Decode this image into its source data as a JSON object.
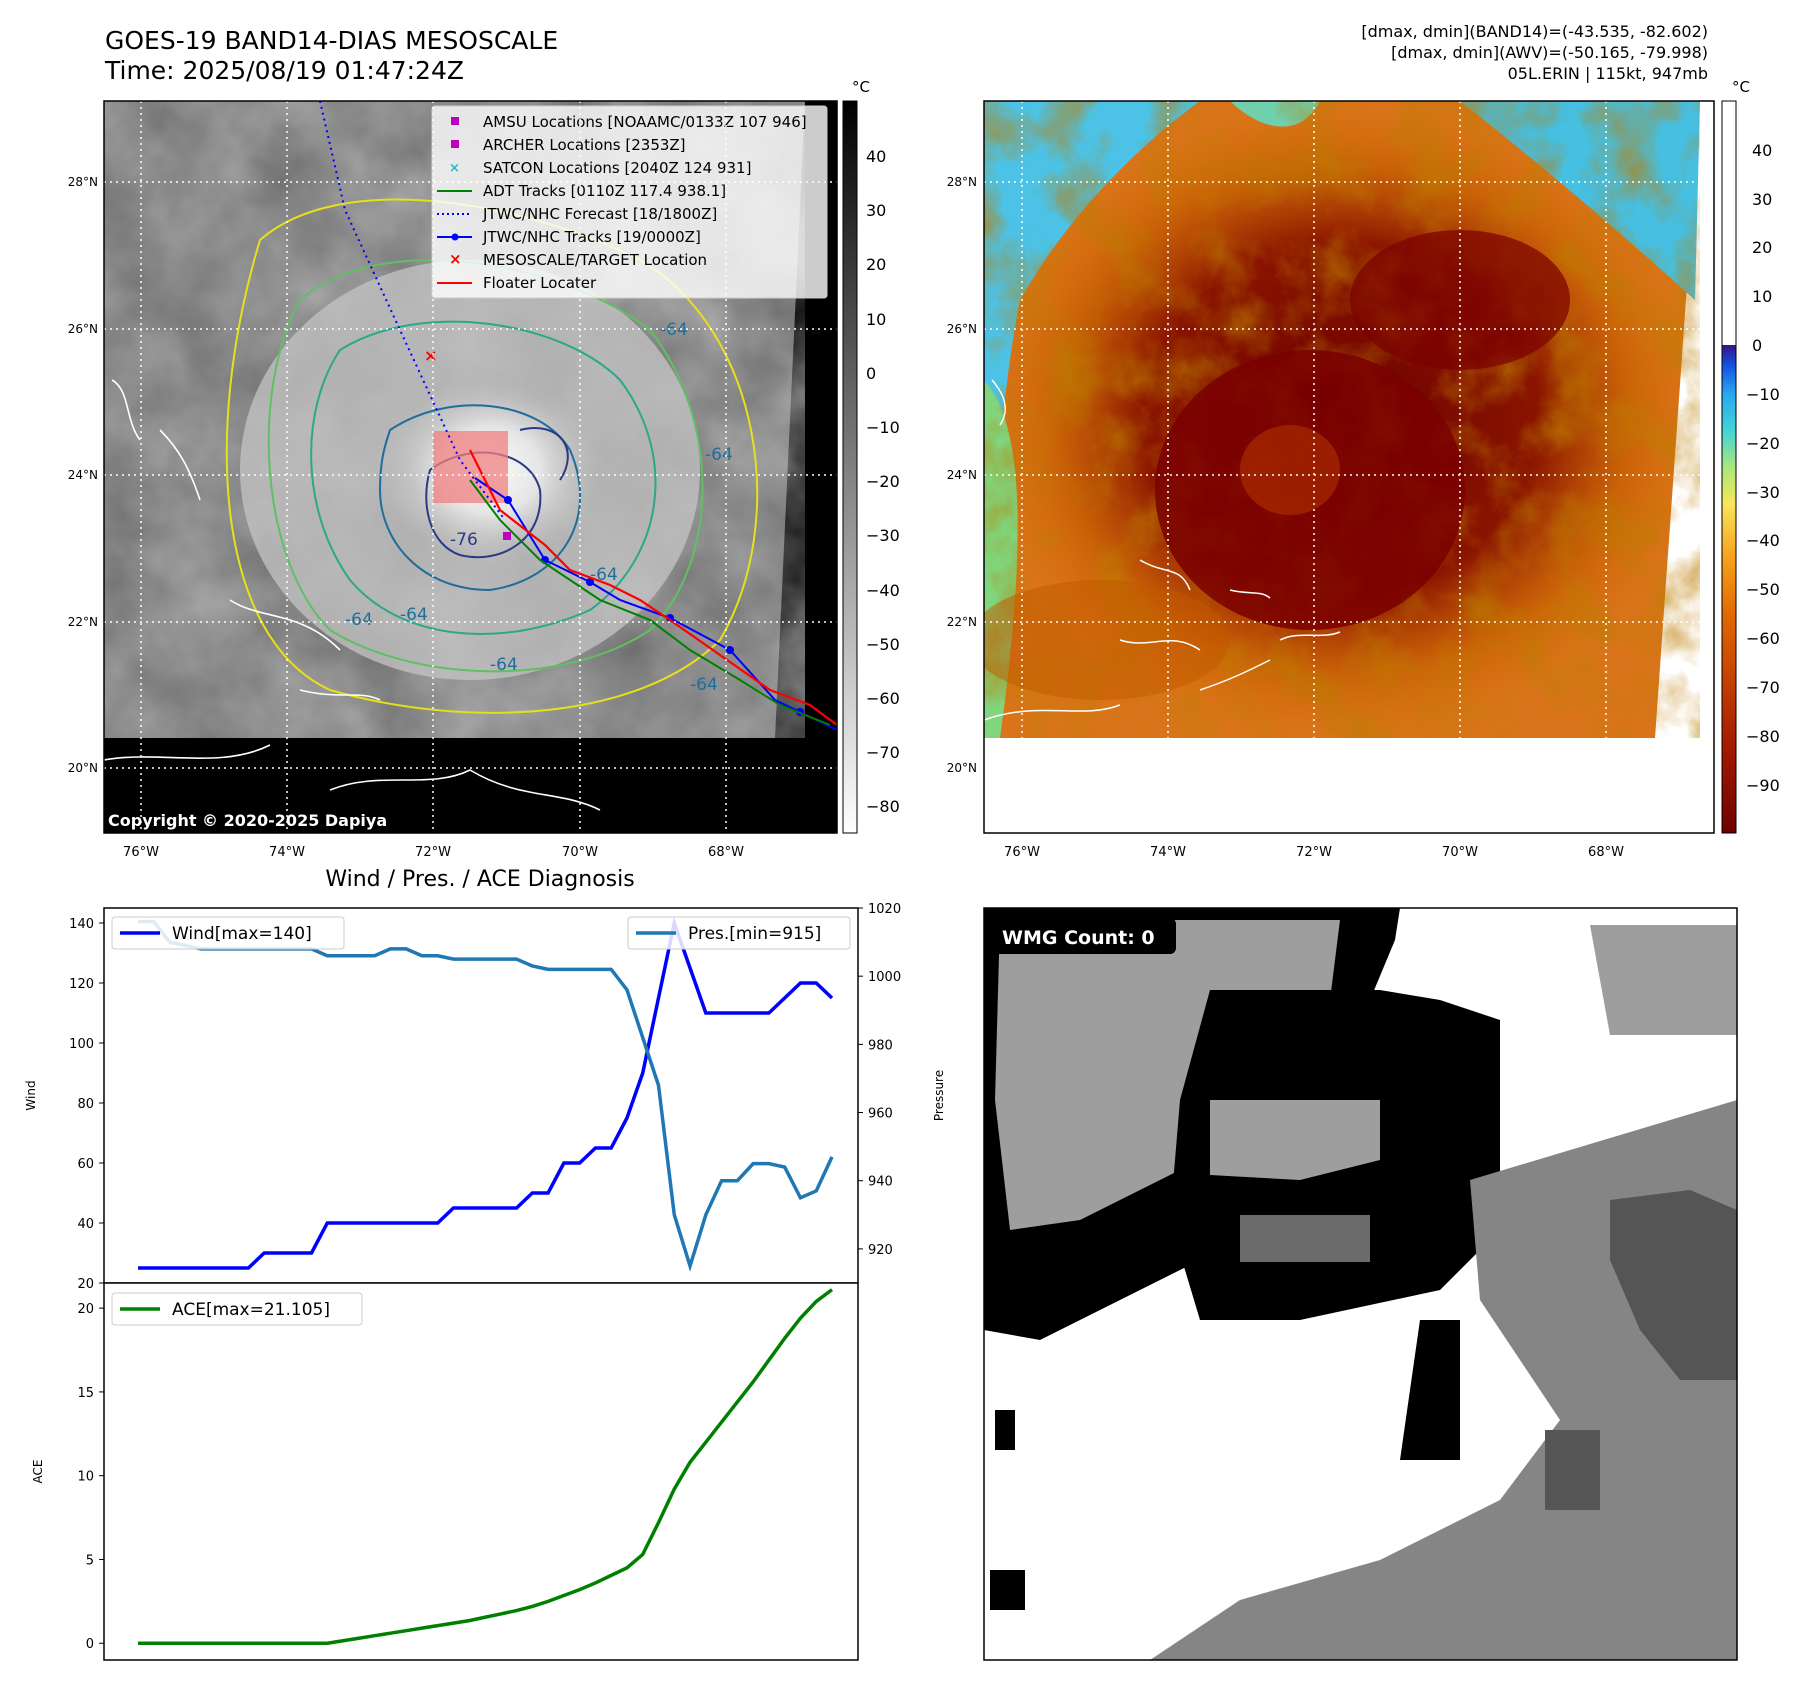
{
  "header": {
    "title": "GOES-19 BAND14-DIAS MESOSCALE",
    "time": "Time: 2025/08/19 01:47:24Z",
    "dmax_band14": "[dmax, dmin](BAND14)=(-43.535, -82.602)",
    "dmax_awv": "[dmax, dmin](AWV)=(-50.165, -79.998)",
    "storm": "05L.ERIN | 115kt, 947mb"
  },
  "copyright": "Copyright © 2020-2025 Dapiya",
  "colorbar_unit": "°C",
  "map_ticks": {
    "lat": [
      "28°N",
      "26°N",
      "24°N",
      "22°N",
      "20°N"
    ],
    "lon": [
      "76°W",
      "74°W",
      "72°W",
      "70°W",
      "68°W"
    ]
  },
  "colors": {
    "jtwc_track": "#0000ff",
    "adt_track": "#008000",
    "floater": "#ff0000",
    "amsu": "#bf00bf",
    "satcon": "#17becf",
    "pressure": "#1f77b4",
    "ace": "#008000"
  },
  "legend": [
    {
      "icon": "amsu-square-icon",
      "label": "AMSU Locations [NOAAMC/0133Z 107 946]"
    },
    {
      "icon": "archer-square-icon",
      "label": "ARCHER Locations [2353Z]"
    },
    {
      "icon": "satcon-x-icon",
      "label": "SATCON Locations [2040Z 124 931]"
    },
    {
      "icon": "adt-line-icon",
      "label": "ADT Tracks [0110Z 117.4 938.1]"
    },
    {
      "icon": "forecast-dotted-line-icon",
      "label": "JTWC/NHC Forecast [18/1800Z]"
    },
    {
      "icon": "tracks-line-marker-icon",
      "label": "JTWC/NHC Tracks [19/0000Z]"
    },
    {
      "icon": "target-x-icon",
      "label": "MESOSCALE/TARGET Location"
    },
    {
      "icon": "floater-line-icon",
      "label": "Floater Locater"
    }
  ],
  "contour_labels": [
    "-76",
    "-64",
    "-64",
    "-64",
    "-64",
    "-64",
    "-64",
    "-64"
  ],
  "colorbar_left_ticks": [
    "40",
    "30",
    "20",
    "10",
    "0",
    "−10",
    "−20",
    "−30",
    "−40",
    "−50",
    "−60",
    "−70",
    "−80"
  ],
  "colorbar_right_ticks": [
    "40",
    "30",
    "20",
    "10",
    "0",
    "−10",
    "−20",
    "−30",
    "−40",
    "−50",
    "−60",
    "−70",
    "−80",
    "−90"
  ],
  "diag_title": "Wind / Pres. / ACE Diagnosis",
  "wmg_label": "WMG Count: 0",
  "chart_data": [
    {
      "type": "line",
      "title": "Wind / Pres. / ACE Diagnosis",
      "ylabel": "Wind",
      "y2label": "Pressure",
      "ylim": [
        20,
        145
      ],
      "y2lim": [
        910,
        1020
      ],
      "yticks": [
        20,
        40,
        60,
        80,
        100,
        120,
        140
      ],
      "y2ticks": [
        920,
        940,
        960,
        980,
        1000,
        1020
      ],
      "x": [
        0,
        1,
        2,
        3,
        4,
        5,
        6,
        7,
        8,
        9,
        10,
        11,
        12,
        13,
        14,
        15,
        16,
        17,
        18,
        19,
        20,
        21,
        22,
        23,
        24,
        25,
        26,
        27,
        28,
        29,
        30,
        31,
        32,
        33,
        34,
        35,
        36,
        37,
        38,
        39,
        40,
        41,
        42,
        43,
        44
      ],
      "series": [
        {
          "name": "Wind[max=140]",
          "axis": "left",
          "values": [
            25,
            25,
            25,
            25,
            25,
            25,
            25,
            25,
            30,
            30,
            30,
            30,
            40,
            40,
            40,
            40,
            40,
            40,
            40,
            40,
            45,
            45,
            45,
            45,
            45,
            50,
            50,
            60,
            60,
            65,
            65,
            75,
            90,
            115,
            140,
            125,
            110,
            110,
            110,
            110,
            110,
            115,
            120,
            120,
            115
          ]
        },
        {
          "name": "Pres.[min=915]",
          "axis": "right",
          "values": [
            1016,
            1016,
            1010,
            1009,
            1008,
            1008,
            1008,
            1008,
            1008,
            1008,
            1008,
            1008,
            1006,
            1006,
            1006,
            1006,
            1008,
            1008,
            1006,
            1006,
            1005,
            1005,
            1005,
            1005,
            1005,
            1003,
            1002,
            1002,
            1002,
            1002,
            1002,
            996,
            982,
            968,
            930,
            915,
            930,
            940,
            940,
            945,
            945,
            944,
            935,
            937,
            947
          ]
        }
      ]
    },
    {
      "type": "line",
      "ylabel": "ACE",
      "ylim": [
        -1,
        21.5
      ],
      "yticks": [
        0,
        5,
        10,
        15,
        20
      ],
      "x": [
        0,
        1,
        2,
        3,
        4,
        5,
        6,
        7,
        8,
        9,
        10,
        11,
        12,
        13,
        14,
        15,
        16,
        17,
        18,
        19,
        20,
        21,
        22,
        23,
        24,
        25,
        26,
        27,
        28,
        29,
        30,
        31,
        32,
        33,
        34,
        35,
        36,
        37,
        38,
        39,
        40,
        41,
        42,
        43,
        44
      ],
      "series": [
        {
          "name": "ACE[max=21.105]",
          "values": [
            0,
            0,
            0,
            0,
            0,
            0,
            0,
            0,
            0,
            0,
            0,
            0,
            0,
            0.15,
            0.3,
            0.45,
            0.6,
            0.75,
            0.9,
            1.05,
            1.2,
            1.35,
            1.55,
            1.75,
            1.95,
            2.2,
            2.5,
            2.85,
            3.2,
            3.6,
            4.05,
            4.5,
            5.3,
            7.2,
            9.2,
            10.8,
            12.0,
            13.2,
            14.4,
            15.6,
            16.9,
            18.2,
            19.4,
            20.4,
            21.105
          ]
        }
      ]
    }
  ]
}
